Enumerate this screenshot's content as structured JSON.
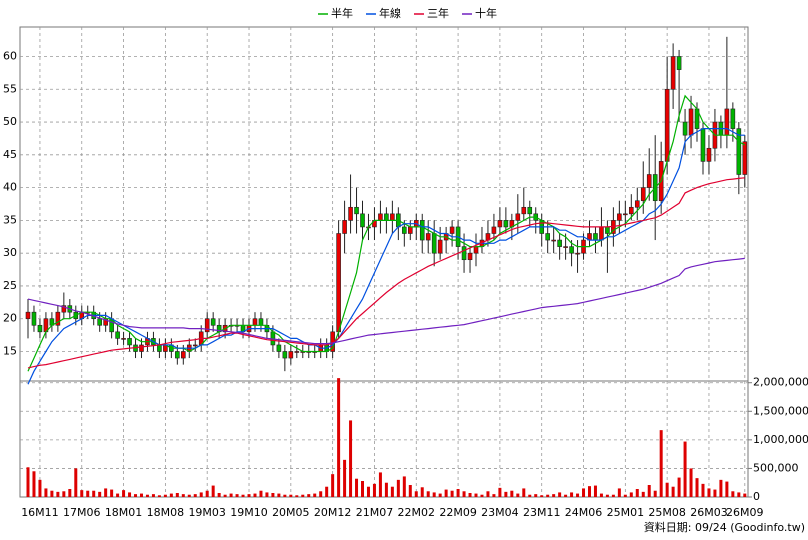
{
  "chart_data": {
    "type": "candlestick",
    "categories": [
      null,
      null,
      "16M11",
      null,
      null,
      null,
      null,
      null,
      null,
      "17M06",
      null,
      null,
      null,
      null,
      null,
      null,
      "18M01",
      null,
      null,
      null,
      null,
      null,
      null,
      "18M08",
      null,
      null,
      null,
      null,
      null,
      null,
      "19M03",
      null,
      null,
      null,
      null,
      null,
      null,
      "19M10",
      null,
      null,
      null,
      null,
      null,
      null,
      "20M05",
      null,
      null,
      null,
      null,
      null,
      null,
      "20M12",
      null,
      null,
      null,
      null,
      null,
      null,
      "21M07",
      null,
      null,
      null,
      null,
      null,
      null,
      "22M02",
      null,
      null,
      null,
      null,
      null,
      null,
      "22M09",
      null,
      null,
      null,
      null,
      null,
      null,
      "23M04",
      null,
      null,
      null,
      null,
      null,
      null,
      "23M11",
      null,
      null,
      null,
      null,
      null,
      null,
      "24M06",
      null,
      null,
      null,
      null,
      null,
      null,
      "25M01",
      null,
      null,
      null,
      null,
      null,
      null,
      "25M08",
      null,
      null,
      null,
      null,
      null,
      null,
      "26M03",
      null,
      null,
      null,
      null,
      null,
      "26M09"
    ],
    "open": [
      20,
      21,
      19,
      18,
      20,
      19,
      21,
      22,
      21,
      20,
      21,
      21,
      20,
      19,
      20,
      18,
      17,
      17,
      16,
      15,
      16,
      17,
      16,
      15,
      16,
      15,
      14,
      15,
      16,
      16,
      18,
      20,
      19,
      18,
      19,
      19,
      19,
      18,
      19,
      20,
      19,
      18,
      16,
      15,
      14,
      15,
      15,
      15,
      15,
      15,
      16,
      15,
      18,
      33,
      35,
      37,
      36,
      34,
      34,
      35,
      36,
      35,
      36,
      34,
      33,
      34,
      35,
      32,
      33,
      30,
      32,
      33,
      34,
      31,
      29,
      30,
      31,
      32,
      33,
      34,
      35,
      34,
      35,
      36,
      37,
      36,
      35,
      33,
      32,
      32,
      31,
      31,
      30,
      30,
      32,
      33,
      32,
      34,
      33,
      35,
      36,
      36,
      37,
      38,
      40,
      42,
      38,
      44,
      55,
      60,
      50,
      48,
      52,
      49,
      44,
      46,
      50,
      48,
      52,
      49,
      42
    ],
    "high": [
      23,
      22,
      20,
      21,
      21,
      22,
      24,
      23,
      22,
      22,
      22,
      22,
      21,
      21,
      21,
      19,
      18,
      18,
      17,
      17,
      18,
      18,
      17,
      17,
      17,
      16,
      16,
      17,
      17,
      19,
      21,
      21,
      20,
      20,
      20,
      20,
      20,
      20,
      21,
      21,
      20,
      19,
      17,
      16,
      16,
      16,
      16,
      16,
      16,
      17,
      17,
      19,
      35,
      38,
      42,
      40,
      38,
      36,
      37,
      38,
      37,
      38,
      37,
      35,
      35,
      36,
      36,
      35,
      35,
      34,
      34,
      35,
      35,
      33,
      31,
      33,
      34,
      35,
      36,
      37,
      37,
      36,
      39,
      40,
      38,
      37,
      36,
      35,
      34,
      33,
      33,
      32,
      32,
      33,
      35,
      34,
      37,
      35,
      37,
      38,
      38,
      39,
      40,
      44,
      46,
      48,
      47,
      60,
      62,
      61,
      52,
      54,
      53,
      50,
      48,
      52,
      51,
      63,
      53,
      50,
      48
    ],
    "low": [
      17,
      18,
      17,
      17,
      18,
      18,
      20,
      20,
      19,
      19,
      20,
      19,
      18,
      18,
      17,
      16,
      16,
      15,
      14,
      14,
      15,
      15,
      14,
      14,
      14,
      13,
      13,
      14,
      15,
      15,
      17,
      18,
      17,
      17,
      18,
      18,
      17,
      17,
      18,
      18,
      17,
      15,
      14,
      12,
      13,
      14,
      14,
      14,
      14,
      14,
      14,
      14,
      17,
      30,
      33,
      33,
      32,
      32,
      32,
      33,
      33,
      33,
      32,
      31,
      32,
      32,
      30,
      30,
      28,
      29,
      30,
      31,
      29,
      27,
      27,
      28,
      30,
      31,
      32,
      33,
      33,
      32,
      33,
      35,
      34,
      33,
      31,
      30,
      30,
      29,
      29,
      28,
      27,
      29,
      31,
      30,
      31,
      27,
      31,
      33,
      34,
      35,
      35,
      36,
      38,
      32,
      36,
      42,
      52,
      50,
      45,
      46,
      47,
      42,
      42,
      44,
      46,
      46,
      47,
      39,
      40
    ],
    "close": [
      21,
      19,
      18,
      20,
      19,
      21,
      22,
      21,
      20,
      21,
      21,
      20,
      19,
      20,
      18,
      17,
      17,
      16,
      15,
      16,
      17,
      16,
      15,
      16,
      15,
      14,
      15,
      16,
      16,
      18,
      20,
      19,
      18,
      19,
      19,
      19,
      18,
      19,
      20,
      19,
      18,
      16,
      15,
      14,
      15,
      15,
      15,
      15,
      15,
      16,
      15,
      18,
      33,
      35,
      37,
      36,
      34,
      34,
      35,
      36,
      35,
      36,
      34,
      33,
      34,
      35,
      32,
      33,
      30,
      32,
      33,
      34,
      31,
      29,
      30,
      31,
      32,
      33,
      34,
      35,
      34,
      35,
      36,
      37,
      36,
      35,
      33,
      32,
      32,
      31,
      31,
      30,
      30,
      32,
      33,
      32,
      34,
      33,
      35,
      36,
      36,
      37,
      38,
      40,
      42,
      38,
      44,
      55,
      60,
      58,
      48,
      52,
      49,
      44,
      46,
      50,
      48,
      52,
      49,
      42,
      47
    ],
    "up_color": "#e80000",
    "down_color": "#00b400",
    "series": [
      {
        "name": "半年",
        "color": "#00b000",
        "values": [
          12,
          14,
          16,
          18,
          19,
          19.5,
          20,
          20,
          20.5,
          21,
          21,
          21,
          20.5,
          20,
          20,
          19,
          18.5,
          18,
          17,
          16.5,
          16.5,
          16.5,
          16,
          16,
          15.5,
          15.5,
          15.5,
          15,
          15.5,
          16,
          17,
          17.5,
          18,
          18.5,
          19,
          19,
          19,
          19,
          19,
          19,
          19,
          18,
          17.5,
          16.5,
          16,
          15.5,
          15,
          15,
          15,
          15,
          15,
          15.5,
          18,
          21,
          24,
          27,
          32,
          34,
          35,
          35,
          35,
          35,
          35,
          34.5,
          34,
          34,
          34,
          33.5,
          33,
          32.5,
          32.5,
          32,
          32,
          31.5,
          31,
          31,
          31,
          31.5,
          32,
          33,
          33.5,
          34,
          34.5,
          35,
          35.5,
          35.5,
          35,
          34.5,
          34,
          33,
          32.5,
          31.5,
          31,
          31,
          31,
          31.5,
          32,
          32.5,
          33.5,
          34,
          34.5,
          35.5,
          36.5,
          37.5,
          39,
          40,
          41,
          44,
          47,
          51,
          54,
          53,
          52,
          50,
          49,
          48,
          48,
          48,
          48,
          47,
          46.5
        ]
      },
      {
        "name": "年線",
        "color": "#0050e0",
        "values": [
          10,
          12,
          13.5,
          15,
          16.5,
          17.5,
          18.5,
          19,
          19.5,
          20,
          20.5,
          20.5,
          20.5,
          20.5,
          20,
          19.5,
          19,
          18.5,
          18,
          17.5,
          17,
          16.5,
          16,
          16,
          16,
          15.5,
          15.5,
          15.5,
          15.5,
          16,
          16,
          16.5,
          17,
          17.5,
          17.5,
          18,
          18,
          18.5,
          18.5,
          18.5,
          18.5,
          18.5,
          18,
          17.5,
          17,
          17,
          16.5,
          16,
          16,
          15.5,
          15.5,
          16,
          17,
          18.5,
          20,
          21.5,
          23,
          25,
          27,
          29,
          31,
          33,
          34,
          34.5,
          34.5,
          34.5,
          34,
          34,
          33.5,
          33,
          33,
          32.5,
          32.5,
          32,
          32,
          31.5,
          31.5,
          31.5,
          31.5,
          32,
          32,
          32.5,
          33,
          33.5,
          34,
          34,
          34,
          34,
          34,
          33.5,
          33.5,
          33,
          32.5,
          32.5,
          32,
          32,
          32,
          32.5,
          32.5,
          33,
          33.5,
          34,
          34.5,
          35,
          36,
          36.5,
          37.5,
          39,
          41,
          43,
          47,
          48,
          48.5,
          49,
          49,
          49,
          49,
          49,
          48.5,
          48,
          48
        ]
      },
      {
        "name": "三年",
        "color": "#e00030",
        "values": [
          12.5,
          12.7,
          12.9,
          13,
          13.2,
          13.4,
          13.6,
          13.8,
          14,
          14.2,
          14.4,
          14.6,
          14.8,
          15,
          15.2,
          15.3,
          15.4,
          15.5,
          15.6,
          15.7,
          15.8,
          15.9,
          16,
          16.2,
          16.4,
          16.5,
          16.6,
          16.7,
          16.8,
          17,
          17,
          17.2,
          17.4,
          17.6,
          17.8,
          17.8,
          17.6,
          17.4,
          17.2,
          17,
          16.8,
          16.7,
          16.6,
          16.5,
          16.4,
          16.3,
          16.2,
          16.1,
          16,
          16,
          16,
          16.3,
          17,
          18,
          19,
          20,
          20.8,
          21.6,
          22.4,
          23.2,
          24,
          24.7,
          25.4,
          26,
          26.5,
          27,
          27.5,
          28,
          28.4,
          28.8,
          29.2,
          29.6,
          30,
          30.4,
          30.8,
          31.2,
          31.6,
          32,
          32.4,
          32.8,
          33.2,
          33.6,
          33.9,
          34.1,
          34.3,
          34.5,
          34.6,
          34.6,
          34.5,
          34.4,
          34.3,
          34.2,
          34.1,
          34,
          34,
          34,
          34,
          34,
          34.1,
          34.2,
          34.4,
          34.6,
          34.8,
          35,
          35.2,
          35.4,
          35.8,
          36.4,
          37,
          37.6,
          39.2,
          39.6,
          40,
          40.3,
          40.6,
          40.8,
          41,
          41.2,
          41.3,
          41.4,
          41.5
        ]
      },
      {
        "name": "十年",
        "color": "#7020c0",
        "values": [
          23,
          22.8,
          22.6,
          22.4,
          22.2,
          22,
          21.8,
          21.5,
          21.2,
          21,
          20.7,
          20.4,
          20.1,
          19.8,
          19.5,
          19.2,
          19,
          18.8,
          18.7,
          18.6,
          18.6,
          18.6,
          18.6,
          18.6,
          18.6,
          18.6,
          18.6,
          18.5,
          18.5,
          18.5,
          18.4,
          18.3,
          18.2,
          18.1,
          18,
          17.9,
          17.8,
          17.6,
          17.4,
          17.2,
          17,
          16.9,
          16.8,
          16.7,
          16.6,
          16.5,
          16.4,
          16.3,
          16.2,
          16.2,
          16.2,
          16.3,
          16.5,
          16.7,
          16.9,
          17.1,
          17.3,
          17.5,
          17.6,
          17.7,
          17.8,
          17.9,
          18,
          18.1,
          18.2,
          18.3,
          18.4,
          18.5,
          18.6,
          18.7,
          18.8,
          18.9,
          19,
          19.1,
          19.3,
          19.5,
          19.7,
          19.9,
          20.1,
          20.3,
          20.5,
          20.7,
          20.9,
          21.1,
          21.3,
          21.5,
          21.7,
          21.8,
          21.9,
          22,
          22.1,
          22.2,
          22.3,
          22.5,
          22.7,
          22.9,
          23.1,
          23.3,
          23.5,
          23.7,
          23.9,
          24.1,
          24.3,
          24.5,
          24.8,
          25.1,
          25.4,
          25.8,
          26.2,
          26.6,
          27.6,
          27.9,
          28.1,
          28.3,
          28.5,
          28.7,
          28.8,
          28.9,
          29,
          29.1,
          29.2
        ]
      }
    ],
    "volume": {
      "color": "#dd0000",
      "values": [
        520000,
        450000,
        300000,
        150000,
        110000,
        90000,
        100000,
        140000,
        500000,
        120000,
        110000,
        110000,
        90000,
        150000,
        130000,
        60000,
        120000,
        80000,
        50000,
        60000,
        40000,
        50000,
        30000,
        40000,
        60000,
        70000,
        50000,
        40000,
        50000,
        80000,
        110000,
        200000,
        70000,
        40000,
        60000,
        50000,
        40000,
        50000,
        60000,
        110000,
        80000,
        70000,
        60000,
        40000,
        40000,
        30000,
        40000,
        50000,
        60000,
        100000,
        180000,
        400000,
        2080000,
        650000,
        1340000,
        320000,
        280000,
        180000,
        230000,
        430000,
        250000,
        180000,
        300000,
        360000,
        210000,
        100000,
        170000,
        100000,
        80000,
        60000,
        130000,
        110000,
        140000,
        100000,
        70000,
        60000,
        40000,
        100000,
        50000,
        160000,
        90000,
        110000,
        60000,
        150000,
        40000,
        50000,
        30000,
        40000,
        50000,
        80000,
        40000,
        80000,
        60000,
        150000,
        190000,
        200000,
        60000,
        40000,
        40000,
        150000,
        40000,
        80000,
        140000,
        90000,
        210000,
        110000,
        1170000,
        250000,
        180000,
        340000,
        970000,
        500000,
        330000,
        230000,
        150000,
        130000,
        300000,
        270000,
        100000,
        80000,
        60000
      ]
    },
    "ylim": [
      10.5,
      64.5
    ],
    "yticks": [
      15,
      20,
      25,
      30,
      35,
      40,
      45,
      50,
      55,
      60
    ],
    "y2lim": [
      0,
      2030000
    ],
    "y2ticks": [
      0,
      {
        "value": 500000,
        "label": "500,000"
      },
      {
        "value": 1000000,
        "label": "1,000,000"
      },
      {
        "value": 1500000,
        "label": "1,500,000"
      },
      {
        "value": 2000000,
        "label": "2,000,000"
      }
    ],
    "grid": true,
    "footer": "資料日期: 09/24 (Goodinfo.tw)"
  }
}
